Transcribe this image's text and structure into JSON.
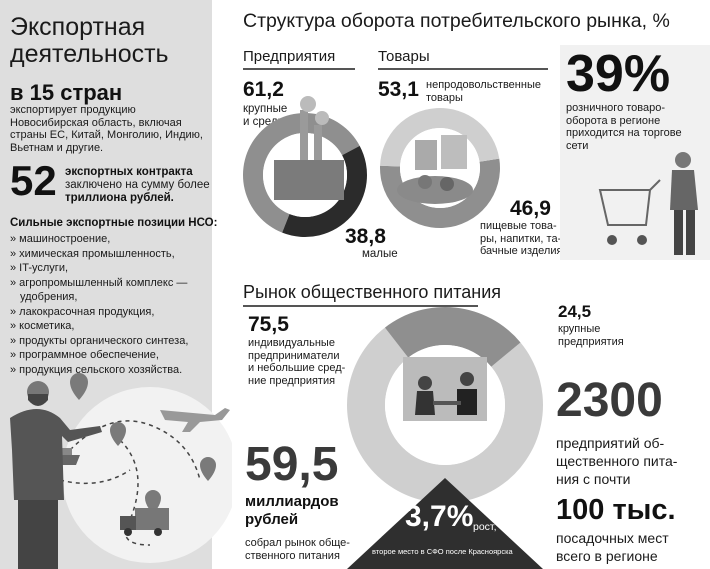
{
  "left": {
    "title_line1": "Экспортная",
    "title_line2": "деятельность",
    "countries_big": "в 15 стран",
    "countries_text": [
      "экспортирует продукцию",
      "Новосибирская область, включая",
      "страны ЕС, Китай, Монголию, Индию,",
      "Вьетнам и другие."
    ],
    "contracts_number": "52",
    "contracts_text1": "экспортных контракта",
    "contracts_text2": "заключено на сумму более",
    "contracts_text3": "триллиона рублей.",
    "positions_title": "Сильные экспортные позиции НСО:",
    "positions": [
      "» машиностроение,",
      "» химическая промышленность,",
      "» IT-услуги,",
      "» агропромышленный комплекс —",
      "   удобрения,",
      "» лакокрасочная продукция,",
      "» косметика,",
      "» продукты органического синтеза,",
      "» программное обеспечение,",
      "» продукция сельского хозяйства."
    ]
  },
  "structure": {
    "title": "Структура оборота потребительского рынка, %",
    "enterprises_label": "Предприятия",
    "goods_label": "Товары",
    "ent_big_value": "61,2",
    "ent_big_label1": "крупные",
    "ent_big_label2": "и средние",
    "ent_small_value": "38,8",
    "ent_small_label": "малые",
    "goods_nonfood_value": "53,1",
    "goods_nonfood_label1": "непродовольственные",
    "goods_nonfood_label2": "товары",
    "goods_food_value": "46,9",
    "goods_food_label1": "пищевые това-",
    "goods_food_label2": "ры, напитки, та-",
    "goods_food_label3": "бачные изделия",
    "retail_percent": "39%",
    "retail_text1": "розничного товаро-",
    "retail_text2": "оборота в регионе",
    "retail_text3": "приходится на торгове",
    "retail_text4": "сети"
  },
  "catering": {
    "title": "Рынок общественного питания",
    "ip_value": "75,5",
    "ip_text1": "индивидуальные",
    "ip_text2": "предприниматели",
    "ip_text3": "и небольшие сред-",
    "ip_text4": "ние предприятия",
    "large_value": "24,5",
    "large_text1": "крупные",
    "large_text2": "предприятия",
    "count_value": "2300",
    "count_text1": "предприятий об-",
    "count_text2": "щественного пита-",
    "count_text3": "ния с почти",
    "seats_value": "100 тыс.",
    "seats_text1": "посадочных мест",
    "seats_text2": "всего в регионе",
    "money_value": "59,5",
    "money_text1": "миллиардов",
    "money_text2": "рублей",
    "money_text3": "собрал рынок обще-",
    "money_text4": "ственного питания",
    "growth_value": "3,7%",
    "growth_label": "рост,",
    "growth_sub": "второе место в СФО после Красноярска"
  },
  "chart_data": [
    {
      "type": "pie",
      "title": "Предприятия",
      "categories": [
        "крупные и средние",
        "малые"
      ],
      "values": [
        61.2,
        38.8
      ]
    },
    {
      "type": "pie",
      "title": "Товары",
      "categories": [
        "непродовольственные товары",
        "пищевые товары, напитки, табачные изделия"
      ],
      "values": [
        53.1,
        46.9
      ]
    },
    {
      "type": "pie",
      "title": "Рынок общественного питания",
      "categories": [
        "индивидуальные предприниматели и небольшие средние предприятия",
        "крупные предприятия"
      ],
      "values": [
        75.5,
        24.5
      ]
    }
  ],
  "colors": {
    "dark": "#2b2b2b",
    "mid": "#8f8f8f",
    "light": "#cfcfcf",
    "panel": "#dedede"
  }
}
